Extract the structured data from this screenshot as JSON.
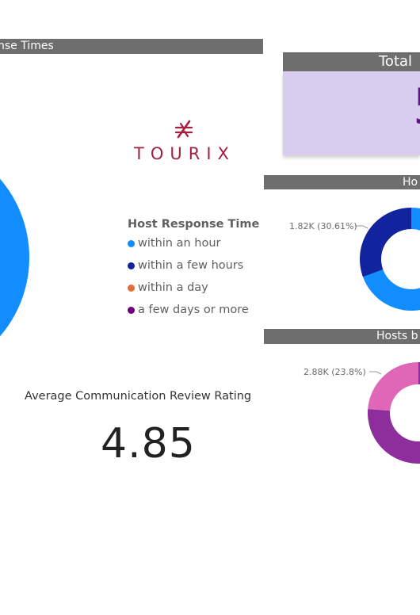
{
  "headers": {
    "left": "nse Times",
    "total": "Total",
    "ho": "Ho",
    "hosts": "Hosts b"
  },
  "brand": {
    "name": "TOURIX"
  },
  "total_card": {
    "value": "5"
  },
  "legend": {
    "title": "Host Response Time",
    "items": [
      {
        "label": "within an hour",
        "color": "#118DFF"
      },
      {
        "label": "within a few hours",
        "color": "#12239E"
      },
      {
        "label": "within a day",
        "color": "#E66C37"
      },
      {
        "label": "a few days or more",
        "color": "#6B007B"
      }
    ]
  },
  "kpi": {
    "label": "Average Communication Review Rating",
    "value": "4.85"
  },
  "chart_data": [
    {
      "type": "pie",
      "title": "",
      "series": [
        {
          "name": "within an hour",
          "color": "#118DFF"
        }
      ]
    },
    {
      "type": "pie",
      "variant": "donut",
      "title": "",
      "slices": [
        {
          "value": 1.82,
          "unit": "K",
          "percent": 30.61,
          "label": "1.82K (30.61%)",
          "color": "#12239E"
        },
        {
          "value": null,
          "percent": 69.39,
          "color": "#118DFF"
        }
      ]
    },
    {
      "type": "pie",
      "variant": "donut",
      "title": "",
      "slices": [
        {
          "value": 2.88,
          "unit": "K",
          "percent": 23.8,
          "label": "2.88K (23.8%)",
          "color": "#E066B8"
        },
        {
          "value": null,
          "percent": 76.2,
          "color": "#8E2D9C"
        }
      ]
    }
  ]
}
